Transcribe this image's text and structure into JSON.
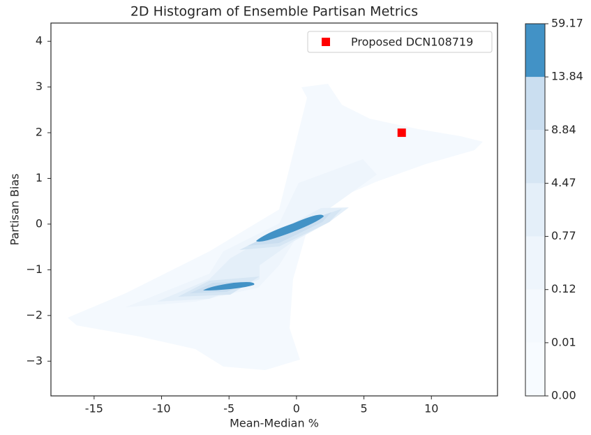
{
  "chart_data": {
    "type": "scatter",
    "title": "2D Histogram of Ensemble Partisan Metrics",
    "x_label": "Mean-Median %",
    "y_label": "Partisan Bias",
    "xlim": [
      -18.2,
      14.9
    ],
    "ylim": [
      -3.76,
      4.4
    ],
    "xticks": [
      -15,
      -10,
      -5,
      0,
      5,
      10
    ],
    "yticks": [
      {
        "value": -3,
        "label": "−3"
      },
      {
        "value": -2,
        "label": "−2"
      },
      {
        "value": -1,
        "label": "−1"
      },
      0,
      1,
      2,
      3,
      4
    ],
    "series": [
      {
        "name": "Proposed DCN108719",
        "color": "#ff0000",
        "x": [
          7.8
        ],
        "values": [
          2.0
        ]
      }
    ],
    "legend": "upper right",
    "colorbar": {
      "ticks": [
        {
          "value": 0.0,
          "label": "0.00"
        },
        {
          "value": 0.01,
          "label": "0.01"
        },
        {
          "value": 0.12,
          "label": "0.12"
        },
        {
          "value": 0.77,
          "label": "0.77"
        },
        {
          "value": 4.47,
          "label": "4.47"
        },
        {
          "value": 8.84,
          "label": "8.84"
        },
        {
          "value": 13.84,
          "label": "13.84"
        },
        {
          "value": 59.17,
          "label": "59.17"
        }
      ],
      "colors": [
        "#f7fbff",
        "#f4f9fe",
        "#eef5fc",
        "#e4eff9",
        "#d6e6f4",
        "#cadef0",
        "#4292c6"
      ]
    }
  }
}
